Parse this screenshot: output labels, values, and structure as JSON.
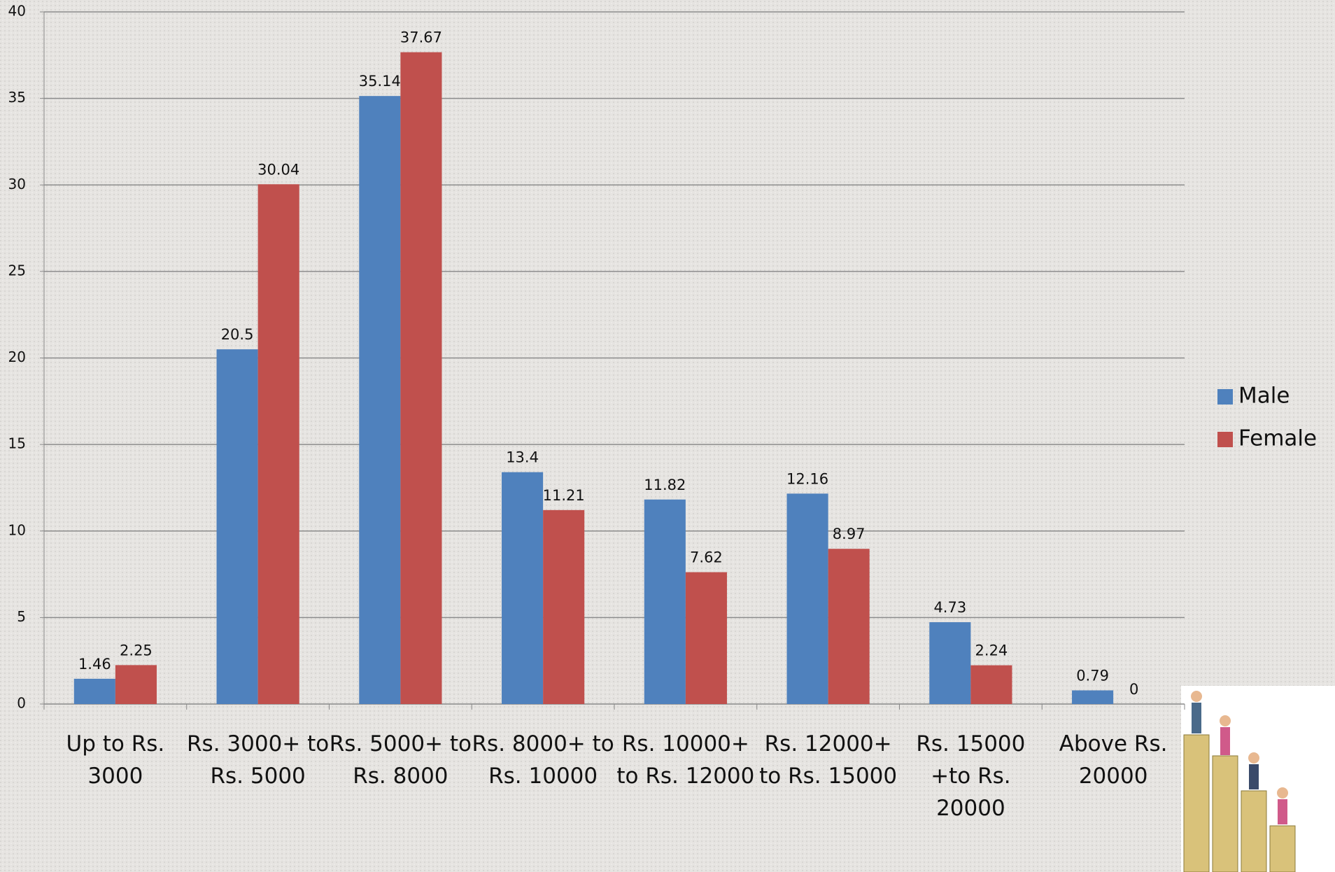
{
  "chart_data": {
    "type": "bar",
    "categories": [
      "Up to Rs. 3000",
      "Rs. 3000+ to Rs. 5000",
      "Rs. 5000+ to Rs. 8000",
      "Rs. 8000+ to Rs. 10000",
      "Rs. 10000+ to Rs. 12000",
      "Rs. 12000+ to Rs. 15000",
      "Rs. 15000 +to Rs. 20000",
      "Above Rs. 20000"
    ],
    "series": [
      {
        "name": "Male",
        "color": "#4f81bd",
        "values": [
          1.46,
          20.5,
          35.14,
          13.4,
          11.82,
          12.16,
          4.73,
          0.79
        ]
      },
      {
        "name": "Female",
        "color": "#c0504d",
        "values": [
          2.25,
          30.04,
          37.67,
          11.21,
          7.62,
          8.97,
          2.24,
          0
        ]
      }
    ],
    "ylim": [
      0,
      40
    ],
    "yticks": [
      0,
      5,
      10,
      15,
      20,
      25,
      30,
      35,
      40
    ],
    "grid": true,
    "legend": "right"
  }
}
